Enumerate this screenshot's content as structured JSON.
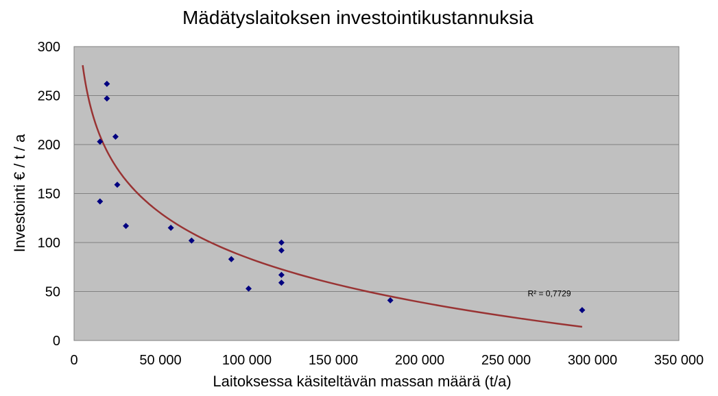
{
  "chart_data": {
    "type": "scatter",
    "title": "Mädätyslaitoksen investointikustannuksia",
    "xlabel": "Laitoksessa käsiteltävän massan määrä (t/a)",
    "ylabel": "Investointi  €  /  t / a",
    "xlim": [
      0,
      350000
    ],
    "ylim": [
      0,
      300
    ],
    "x_ticks": [
      0,
      50000,
      100000,
      150000,
      200000,
      250000,
      300000,
      350000
    ],
    "x_tick_labels": [
      "0",
      "50 000",
      "100 000",
      "150 000",
      "200 000",
      "250 000",
      "300 000",
      "350 000"
    ],
    "y_ticks": [
      0,
      50,
      100,
      150,
      200,
      250,
      300
    ],
    "y_tick_labels": [
      "0",
      "50",
      "100",
      "150",
      "200",
      "250",
      "300"
    ],
    "grid": "horizontal",
    "plot_background": "#c0c0c0",
    "point_color": "#000080",
    "trend_color": "#993333",
    "points": [
      {
        "x": 19000,
        "y": 262
      },
      {
        "x": 19000,
        "y": 247
      },
      {
        "x": 24000,
        "y": 208
      },
      {
        "x": 15000,
        "y": 203
      },
      {
        "x": 25000,
        "y": 159
      },
      {
        "x": 15000,
        "y": 142
      },
      {
        "x": 30000,
        "y": 117
      },
      {
        "x": 56000,
        "y": 115
      },
      {
        "x": 68000,
        "y": 102
      },
      {
        "x": 120000,
        "y": 100
      },
      {
        "x": 120000,
        "y": 92
      },
      {
        "x": 91000,
        "y": 83
      },
      {
        "x": 120000,
        "y": 67
      },
      {
        "x": 120000,
        "y": 59
      },
      {
        "x": 101000,
        "y": 53
      },
      {
        "x": 183000,
        "y": 41
      },
      {
        "x": 294000,
        "y": 31
      }
    ],
    "trendline": {
      "type": "logarithmic",
      "x_range": [
        5000,
        294000
      ],
      "points": [
        {
          "x": 5000,
          "y": 281
        },
        {
          "x": 294000,
          "y": 14
        }
      ]
    },
    "annotations": [
      {
        "text": "R² = 0,7729",
        "x": 275000,
        "y": 45
      }
    ]
  }
}
